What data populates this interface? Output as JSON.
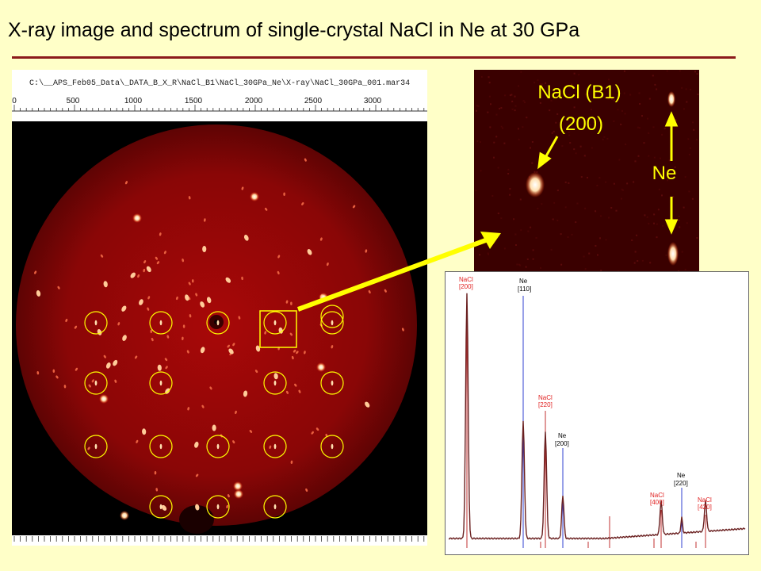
{
  "slide": {
    "title": "X-ray image and spectrum of single-crystal NaCl in Ne at 30 GPa"
  },
  "xray_image": {
    "file_path": "C:\\__APS_Feb05_Data\\_DATA_B_X_R\\NaCl_B1\\NaCl_30GPa_Ne\\X-ray\\NaCl_30GPa_001.mar34",
    "ruler_labels": [
      "0",
      "500",
      "1000",
      "1500",
      "2000",
      "2500",
      "3000"
    ]
  },
  "zoom_inset": {
    "label_line1": "NaCl (B1)",
    "label_line2": "(200)",
    "ne_label": "Ne"
  },
  "spectrum": {
    "peaks": [
      {
        "line1": "NaCl",
        "line2": "[200]",
        "phase": "NaCl"
      },
      {
        "line1": "Ne",
        "line2": "[110]",
        "phase": "Ne"
      },
      {
        "line1": "NaCl",
        "line2": "[220]",
        "phase": "NaCl"
      },
      {
        "line1": "Ne",
        "line2": "[200]",
        "phase": "Ne"
      },
      {
        "line1": "Ne",
        "line2": "[220]",
        "phase": "Ne"
      },
      {
        "line1": "NaCl",
        "line2": "[400]",
        "phase": "NaCl"
      },
      {
        "line1": "NaCl",
        "line2": "[420]",
        "phase": "NaCl"
      }
    ]
  },
  "colors": {
    "background": "#ffffc8",
    "title_rule": "#8b1a1a",
    "highlight": "#ffff00",
    "nacl_label": "#e02020",
    "ne_label": "#000000",
    "nacl_line": "#c03030",
    "ne_line": "#3040d0"
  }
}
